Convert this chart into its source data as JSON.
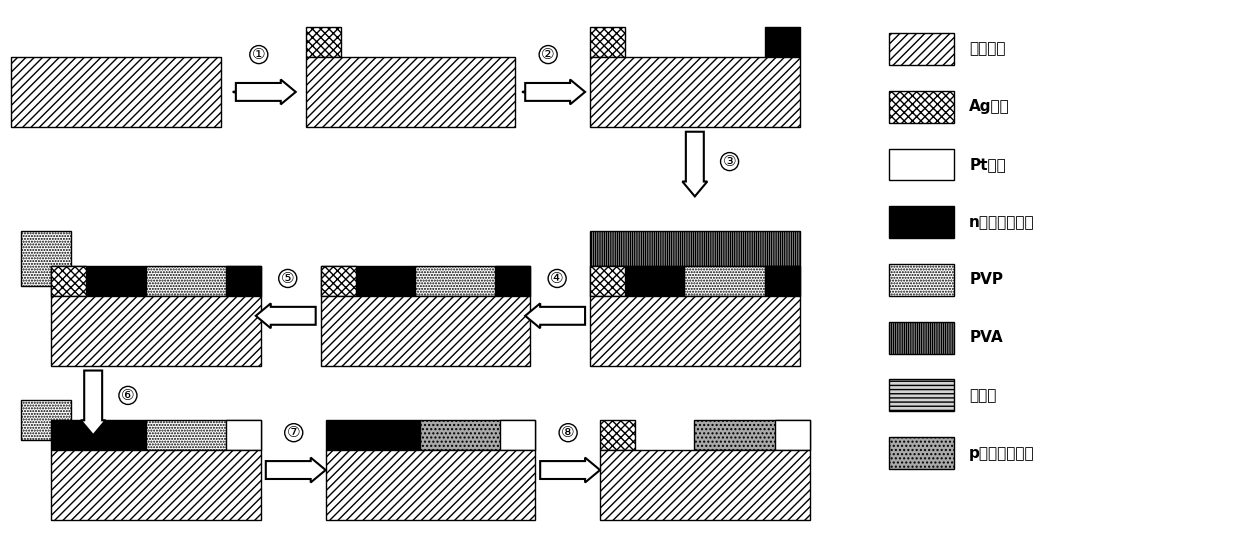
{
  "bg_color": "#ffffff",
  "legend_items": [
    {
      "label": "绝缘衬底",
      "hatch": "////",
      "fc": "white",
      "ec": "black"
    },
    {
      "label": "Ag电极",
      "hatch": "xxxx",
      "fc": "white",
      "ec": "black"
    },
    {
      "label": "Pt电极",
      "hatch": "----",
      "fc": "white",
      "ec": "black"
    },
    {
      "label": "n型硫化钼薄膜",
      "hatch": "....",
      "fc": "black",
      "ec": "black"
    },
    {
      "label": "PVP",
      "hatch": "....",
      "fc": "white",
      "ec": "black"
    },
    {
      "label": "PVA",
      "hatch": "||||",
      "fc": "white",
      "ec": "black"
    },
    {
      "label": "光刻胶",
      "hatch": "----",
      "fc": "white",
      "ec": "black"
    },
    {
      "label": "p型硫化钼薄膜",
      "hatch": "....",
      "fc": "gray",
      "ec": "black"
    }
  ],
  "steps": 8
}
